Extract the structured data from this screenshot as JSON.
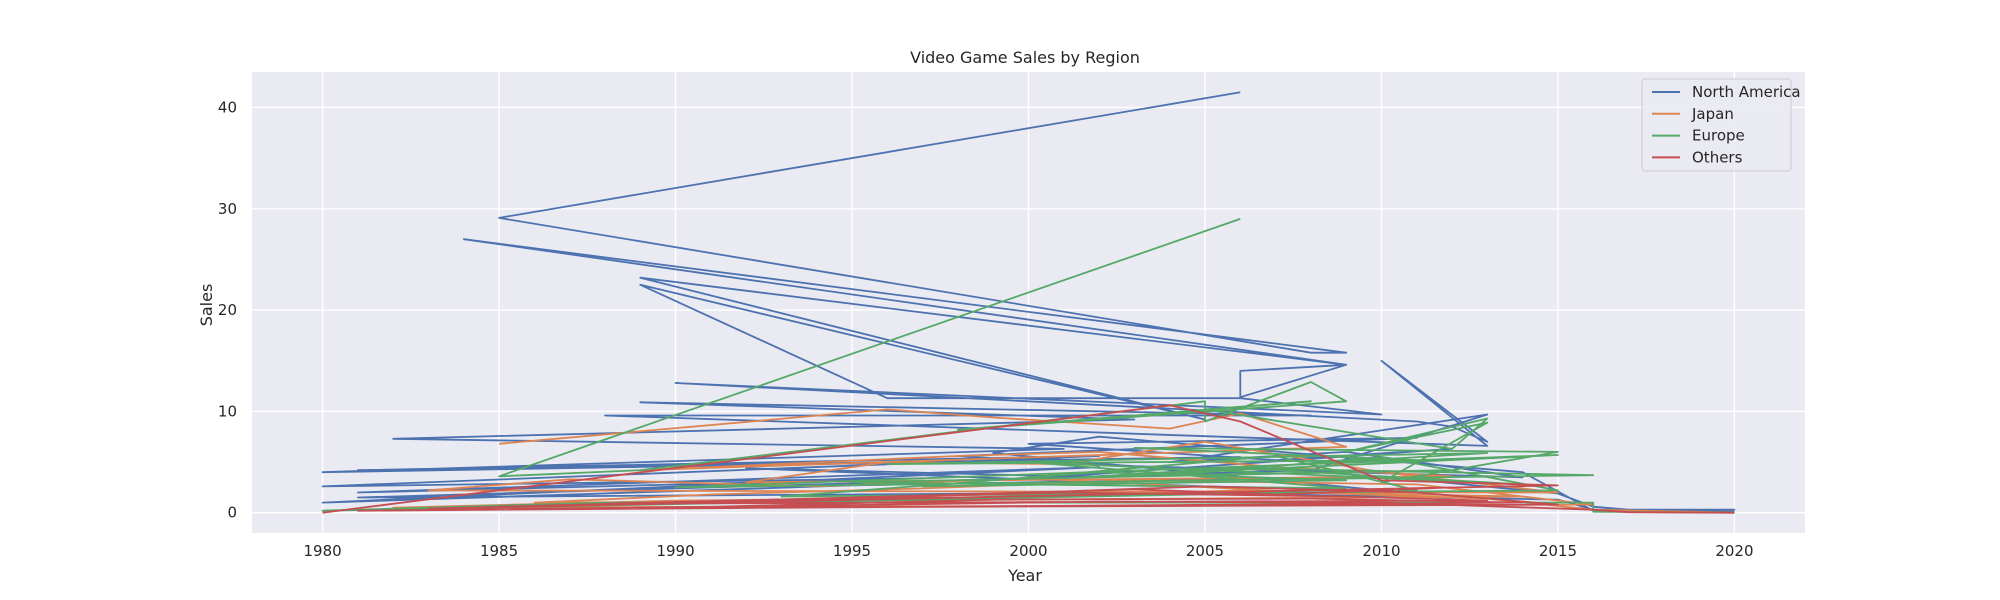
{
  "chart_data": {
    "type": "line",
    "title": "Video Game Sales by Region",
    "xlabel": "Year",
    "ylabel": "Sales",
    "xlim": [
      1978,
      2022
    ],
    "ylim": [
      -2,
      43.5
    ],
    "xticks": [
      1980,
      1985,
      1990,
      1995,
      2000,
      2005,
      2010,
      2015,
      2020
    ],
    "yticks": [
      0,
      10,
      20,
      30,
      40
    ],
    "grid": true,
    "legend_position": "top-right",
    "series": [
      {
        "name": "North America",
        "color": "#4c72b0",
        "points": [
          [
            2006,
            41.5
          ],
          [
            1985,
            29.1
          ],
          [
            2008,
            15.8
          ],
          [
            2009,
            15.8
          ],
          [
            1984,
            27.0
          ],
          [
            2009,
            14.6
          ],
          [
            2006,
            11.4
          ],
          [
            2006,
            14.0
          ],
          [
            2009,
            14.6
          ],
          [
            1989,
            23.2
          ],
          [
            2005,
            9.2
          ],
          [
            1989,
            22.5
          ],
          [
            1996,
            11.3
          ],
          [
            2006,
            11.3
          ],
          [
            2010,
            9.7
          ],
          [
            1990,
            12.8
          ],
          [
            2011,
            9.0
          ],
          [
            2012,
            8.5
          ],
          [
            2013,
            7.0
          ],
          [
            2010,
            15.0
          ],
          [
            2013,
            6.6
          ],
          [
            1988,
            9.6
          ],
          [
            2008,
            9.6
          ],
          [
            1989,
            10.9
          ],
          [
            2003,
            9.2
          ],
          [
            1982,
            7.3
          ],
          [
            2001,
            6.3
          ],
          [
            1980,
            4.0
          ],
          [
            2006,
            5.5
          ],
          [
            1981,
            4.2
          ],
          [
            2002,
            5.6
          ],
          [
            1980,
            2.6
          ],
          [
            1997,
            3.4
          ],
          [
            1981,
            2.0
          ],
          [
            2002,
            4.5
          ],
          [
            1980,
            1.0
          ],
          [
            1995,
            2.7
          ],
          [
            2010,
            3.6
          ],
          [
            2015,
            1.9
          ],
          [
            2016,
            0.6
          ],
          [
            2017,
            0.3
          ],
          [
            2020,
            0.3
          ],
          [
            2016,
            0.3
          ],
          [
            2015,
            1.3
          ],
          [
            2004,
            2.0
          ],
          [
            1981,
            1.5
          ],
          [
            2008,
            4.2
          ],
          [
            2013,
            9.7
          ],
          [
            2004,
            5.0
          ],
          [
            2009,
            6.0
          ],
          [
            2014,
            3.5
          ],
          [
            2003,
            4.6
          ],
          [
            1998,
            5.6
          ],
          [
            2011,
            7.4
          ],
          [
            2000,
            6.8
          ],
          [
            2007,
            5.2
          ],
          [
            2012,
            6.3
          ],
          [
            2001,
            3.6
          ],
          [
            1992,
            4.4
          ],
          [
            2005,
            2.6
          ],
          [
            2010,
            2.2
          ],
          [
            1999,
            5.9
          ],
          [
            2002,
            7.5
          ],
          [
            2014,
            4.0
          ],
          [
            2016,
            0.2
          ],
          [
            2020,
            0.1
          ]
        ]
      },
      {
        "name": "Japan",
        "color": "#dd8452",
        "points": [
          [
            1985,
            6.8
          ],
          [
            1996,
            10.2
          ],
          [
            1999,
            9.4
          ],
          [
            2004,
            8.3
          ],
          [
            2006,
            9.8
          ],
          [
            2009,
            6.5
          ],
          [
            1989,
            4.2
          ],
          [
            1998,
            5.6
          ],
          [
            2002,
            6.0
          ],
          [
            2007,
            4.5
          ],
          [
            2012,
            3.6
          ],
          [
            1992,
            3.0
          ],
          [
            1996,
            5.0
          ],
          [
            2001,
            4.8
          ],
          [
            2005,
            7.0
          ],
          [
            2010,
            4.0
          ],
          [
            2015,
            2.0
          ],
          [
            1983,
            2.2
          ],
          [
            1987,
            3.3
          ],
          [
            1994,
            2.6
          ],
          [
            2000,
            3.4
          ],
          [
            2008,
            2.0
          ],
          [
            2014,
            1.6
          ],
          [
            1986,
            1.0
          ],
          [
            1991,
            1.8
          ],
          [
            1997,
            2.4
          ],
          [
            2003,
            3.2
          ],
          [
            2011,
            2.8
          ],
          [
            2016,
            0.8
          ],
          [
            1982,
            0.5
          ],
          [
            1990,
            1.2
          ],
          [
            1999,
            1.5
          ],
          [
            2006,
            2.2
          ],
          [
            2013,
            1.4
          ],
          [
            2016,
            0.3
          ],
          [
            2020,
            0.0
          ]
        ]
      },
      {
        "name": "Europe",
        "color": "#55a868",
        "points": [
          [
            2006,
            29.0
          ],
          [
            1985,
            3.6
          ],
          [
            1989,
            4.2
          ],
          [
            2005,
            11.0
          ],
          [
            2005,
            9.0
          ],
          [
            2008,
            12.9
          ],
          [
            2009,
            11.0
          ],
          [
            1998,
            8.2
          ],
          [
            2008,
            11.0
          ],
          [
            2005,
            10.2
          ],
          [
            2012,
            6.3
          ],
          [
            2013,
            9.3
          ],
          [
            2009,
            6.0
          ],
          [
            2013,
            8.9
          ],
          [
            2010,
            3.0
          ],
          [
            2015,
            6.0
          ],
          [
            2003,
            6.4
          ],
          [
            2011,
            5.2
          ],
          [
            1996,
            4.8
          ],
          [
            2013,
            5.9
          ],
          [
            2001,
            3.4
          ],
          [
            2015,
            5.7
          ],
          [
            1990,
            2.5
          ],
          [
            2016,
            3.7
          ],
          [
            2006,
            4.4
          ],
          [
            2014,
            2.8
          ],
          [
            2000,
            5.0
          ],
          [
            2009,
            2.4
          ],
          [
            1995,
            3.0
          ],
          [
            2012,
            4.2
          ],
          [
            2004,
            3.7
          ],
          [
            2010,
            5.5
          ],
          [
            2015,
            2.2
          ],
          [
            1993,
            1.6
          ],
          [
            2002,
            4.0
          ],
          [
            2009,
            3.2
          ],
          [
            1997,
            2.6
          ],
          [
            2007,
            5.6
          ],
          [
            2011,
            2.2
          ],
          [
            1980,
            0.2
          ],
          [
            1988,
            1.0
          ],
          [
            2016,
            1.0
          ],
          [
            2016,
            0.1
          ],
          [
            2020,
            0.0
          ]
        ]
      },
      {
        "name": "Others",
        "color": "#c44e52",
        "points": [
          [
            1980,
            0.0
          ],
          [
            2004,
            10.6
          ],
          [
            2006,
            9.0
          ],
          [
            2010,
            3.2
          ],
          [
            2015,
            2.7
          ],
          [
            1985,
            0.6
          ],
          [
            1995,
            1.5
          ],
          [
            2003,
            2.3
          ],
          [
            2007,
            1.8
          ],
          [
            2012,
            2.5
          ],
          [
            1983,
            0.4
          ],
          [
            1992,
            1.2
          ],
          [
            2001,
            2.0
          ],
          [
            2009,
            1.6
          ],
          [
            2013,
            1.2
          ],
          [
            1988,
            0.9
          ],
          [
            1997,
            1.6
          ],
          [
            2005,
            2.6
          ],
          [
            2011,
            2.0
          ],
          [
            2015,
            0.8
          ],
          [
            1990,
            0.5
          ],
          [
            1999,
            1.3
          ],
          [
            2008,
            1.4
          ],
          [
            2014,
            1.0
          ],
          [
            1981,
            0.2
          ],
          [
            1994,
            0.7
          ],
          [
            2002,
            1.1
          ],
          [
            2010,
            1.0
          ],
          [
            2016,
            0.3
          ],
          [
            2017,
            0.05
          ],
          [
            2020,
            0.0
          ]
        ]
      }
    ]
  }
}
